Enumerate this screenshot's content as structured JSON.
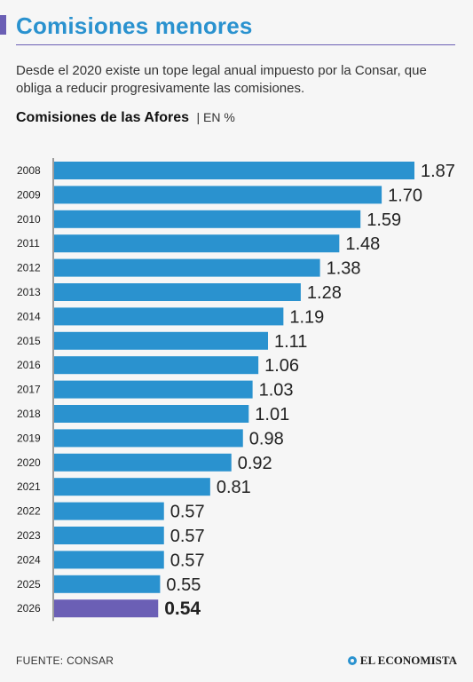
{
  "header": {
    "title": "Comisiones menores",
    "subtitle": "Desde el 2020 existe un tope legal anual impuesto por la Consar, que obliga a reducir progresivamente las comisiones."
  },
  "chart_heading": {
    "main": "Comisiones de las Afores",
    "unit": "| EN %"
  },
  "chart_data": {
    "type": "bar",
    "orientation": "horizontal",
    "title": "Comisiones de las Afores",
    "ylabel": "EN %",
    "categories": [
      "2008",
      "2009",
      "2010",
      "2011",
      "2012",
      "2013",
      "2014",
      "2015",
      "2016",
      "2017",
      "2018",
      "2019",
      "2020",
      "2021",
      "2022",
      "2023",
      "2024",
      "2025",
      "2026"
    ],
    "values": [
      1.87,
      1.7,
      1.59,
      1.48,
      1.38,
      1.28,
      1.19,
      1.11,
      1.06,
      1.03,
      1.01,
      0.98,
      0.92,
      0.81,
      0.57,
      0.57,
      0.57,
      0.55,
      0.54
    ],
    "value_labels": [
      "1.87",
      "1.70",
      "1.59",
      "1.48",
      "1.38",
      "1.28",
      "1.19",
      "1.11",
      "1.06",
      "1.03",
      "1.01",
      "0.98",
      "0.92",
      "0.81",
      "0.57",
      "0.57",
      "0.57",
      "0.55",
      "0.54"
    ],
    "highlight_index": 18,
    "colors": {
      "bar": "#2a92cf",
      "highlight": "#6b5fb5"
    }
  },
  "footer": {
    "source": "FUENTE: CONSAR",
    "brand": "EL ECONOMISTA"
  }
}
